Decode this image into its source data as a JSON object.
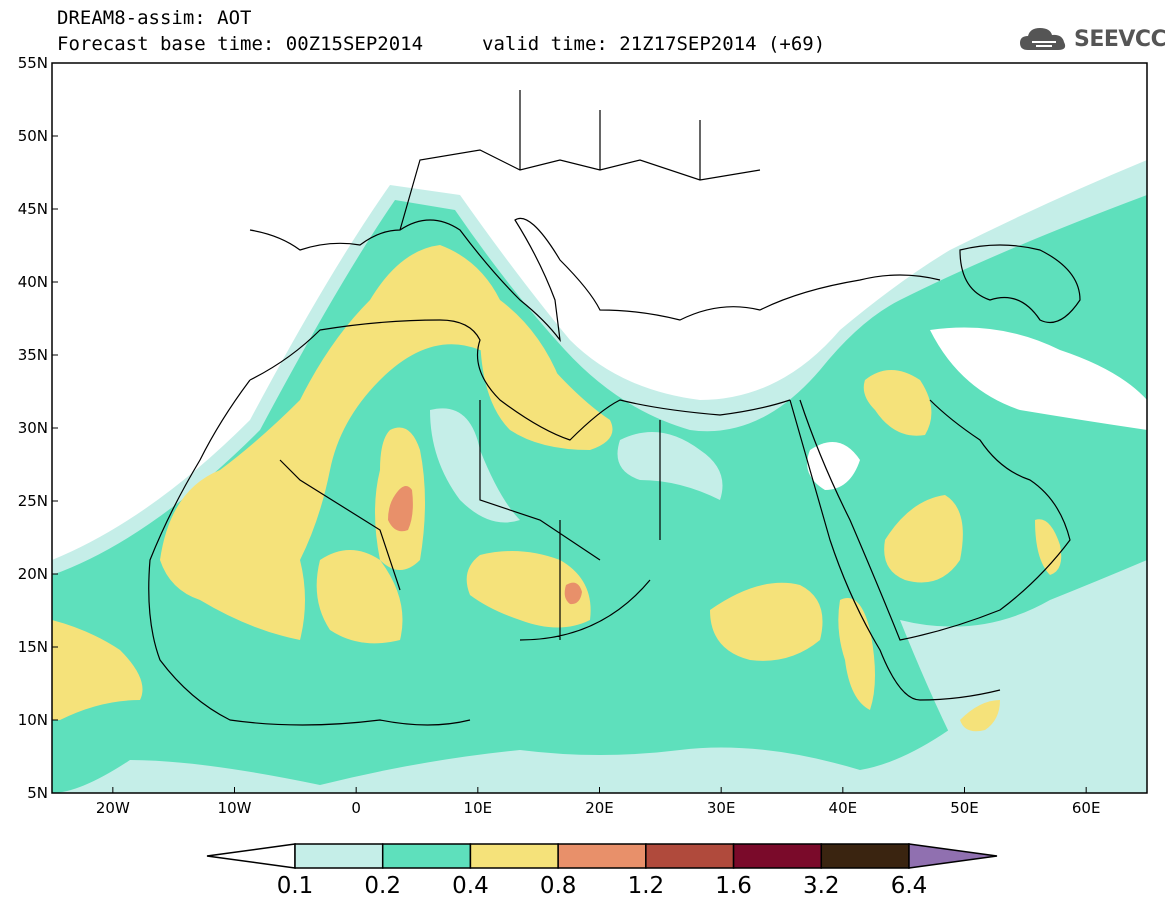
{
  "header": {
    "model_title": "DREAM8-assim: AOT",
    "base_time": "Forecast base time: 00Z15SEP2014",
    "valid_time": "valid time: 21Z17SEP2014 (+69)"
  },
  "logo": {
    "text": "SEEVCCC",
    "icon": "cloud-icon"
  },
  "map": {
    "lat_ticks": [
      "55N",
      "50N",
      "45N",
      "40N",
      "35N",
      "30N",
      "25N",
      "20N",
      "15N",
      "10N",
      "5N"
    ],
    "lon_ticks": [
      "20W",
      "10W",
      "0",
      "10E",
      "20E",
      "30E",
      "40E",
      "50E",
      "60E"
    ],
    "lat_range": [
      5,
      55
    ],
    "lon_range": [
      -25,
      65
    ],
    "ocean_color": "#ffffff",
    "border_color": "#000000"
  },
  "colorbar": {
    "labels": [
      "0.1",
      "0.2",
      "0.4",
      "0.8",
      "1.2",
      "1.6",
      "3.2",
      "6.4"
    ],
    "colors": [
      "#ffffff",
      "#c5eee8",
      "#5ee0bc",
      "#f5e27a",
      "#e8906a",
      "#b04a3c",
      "#7a0a2a",
      "#3a2410",
      "#9070b0"
    ]
  }
}
